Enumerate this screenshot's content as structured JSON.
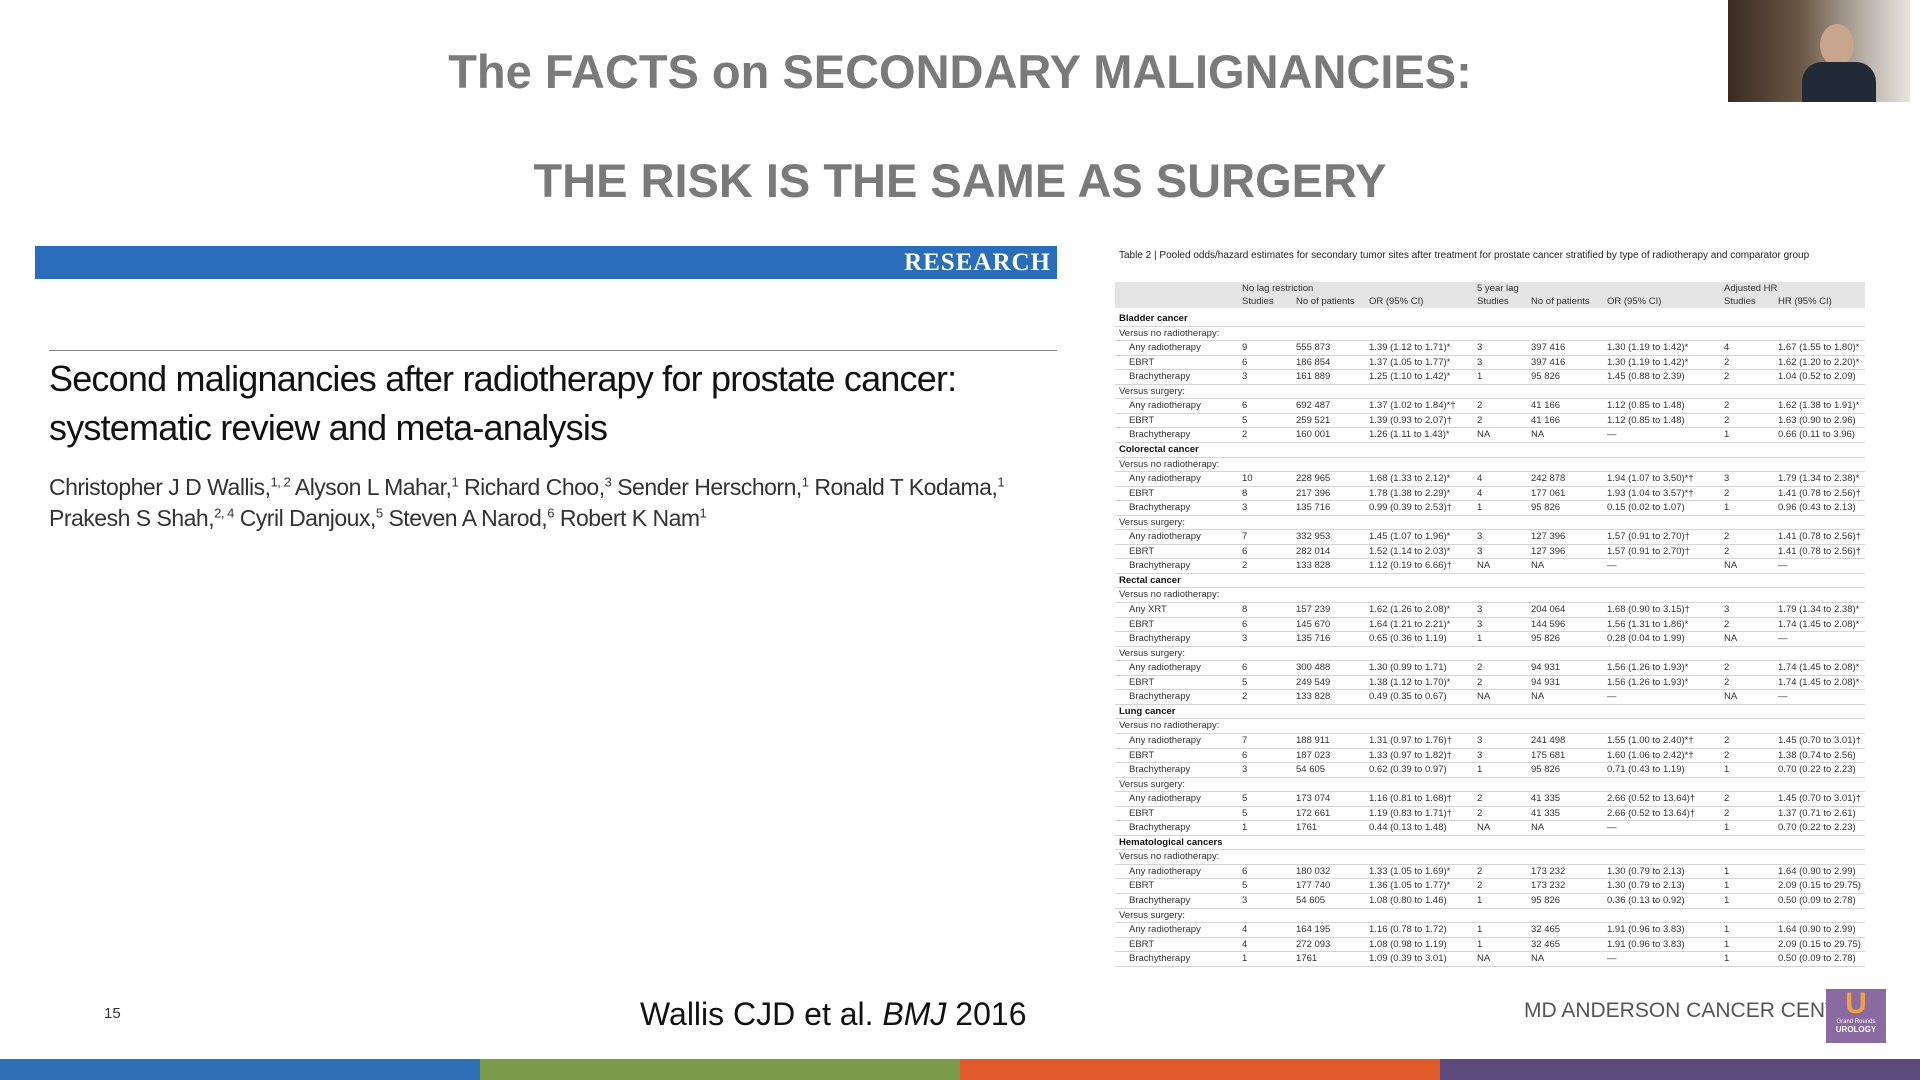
{
  "slide": {
    "title_line1": "The FACTS on SECONDARY MALIGNANCIES:",
    "title_line2": "THE RISK IS THE SAME AS SURGERY",
    "page_number": "15",
    "citation": {
      "authors": "Wallis CJD et al.",
      "journal": "BMJ",
      "year": "2016"
    },
    "footer": "MD ANDERSON CANCER CENTER",
    "logo": {
      "letter": "U",
      "top": "Grand Rounds",
      "bottom": "UROLOGY"
    }
  },
  "article": {
    "banner": "RESEARCH",
    "title_lines": [
      "Second malignancies after radiotherapy for prostate cancer:",
      "systematic review and meta-analysis"
    ],
    "author_lines": [
      [
        {
          "name": "Christopher J D Wallis,",
          "aff": "1, 2"
        },
        {
          "name": "Alyson L Mahar,",
          "aff": "1"
        },
        {
          "name": "Richard Choo,",
          "aff": "3"
        },
        {
          "name": "Sender Herschorn,",
          "aff": "1"
        },
        {
          "name": "Ronald T Kodama,",
          "aff": "1"
        }
      ],
      [
        {
          "name": "Prakesh S Shah,",
          "aff": "2, 4"
        },
        {
          "name": "Cyril Danjoux,",
          "aff": "5"
        },
        {
          "name": "Steven A Narod,",
          "aff": "6"
        },
        {
          "name": "Robert K Nam",
          "aff": "1"
        }
      ]
    ]
  },
  "table": {
    "caption": "Table 2 | Pooled odds/hazard estimates for secondary tumor sites after treatment for prostate cancer stratified by type of radiotherapy and comparator group",
    "header_groups": [
      "No lag restriction",
      "5 year lag",
      "Adjusted HR"
    ],
    "columns": [
      "Studies",
      "No of patients",
      "OR (95% CI)",
      "Studies",
      "No of patients",
      "OR (95% CI)",
      "Studies",
      "HR (95% CI)"
    ],
    "sections": [
      {
        "name": "Bladder cancer",
        "groups": [
          {
            "name": "Versus no radiotherapy:",
            "rows": [
              [
                "Any radiotherapy",
                "9",
                "555 873",
                "1.39 (1.12 to 1.71)*",
                "3",
                "397 416",
                "1.30 (1.19 to 1.42)*",
                "4",
                "1.67 (1.55 to 1.80)*"
              ],
              [
                "EBRT",
                "6",
                "186 854",
                "1.37 (1.05 to 1.77)*",
                "3",
                "397 416",
                "1.30 (1.19 to 1.42)*",
                "2",
                "1.62 (1.20 to 2.20)*"
              ],
              [
                "Brachytherapy",
                "3",
                "161 889",
                "1.25 (1.10 to 1.42)*",
                "1",
                "95 826",
                "1.45 (0.88 to 2.39)",
                "2",
                "1.04 (0.52 to 2.09)"
              ]
            ]
          },
          {
            "name": "Versus surgery:",
            "rows": [
              [
                "Any radiotherapy",
                "6",
                "692 487",
                "1.37 (1.02 to 1.84)*†",
                "2",
                "41 166",
                "1.12 (0.85 to 1.48)",
                "2",
                "1.62 (1.38 to 1.91)*"
              ],
              [
                "EBRT",
                "5",
                "259 521",
                "1.39 (0.93 to 2.07)†",
                "2",
                "41 166",
                "1.12 (0.85 to 1.48)",
                "2",
                "1.63 (0.90 to 2.96)"
              ],
              [
                "Brachytherapy",
                "2",
                "160 001",
                "1.26 (1.11 to 1.43)*",
                "NA",
                "NA",
                "—",
                "1",
                "0.66 (0.11 to 3.96)"
              ]
            ]
          }
        ]
      },
      {
        "name": "Colorectal cancer",
        "groups": [
          {
            "name": "Versus no radiotherapy:",
            "rows": [
              [
                "Any radiotherapy",
                "10",
                "228 965",
                "1.68 (1.33 to 2.12)*",
                "4",
                "242 878",
                "1.94 (1.07 to 3.50)*†",
                "3",
                "1.79 (1.34 to 2.38)*"
              ],
              [
                "EBRT",
                "8",
                "217 396",
                "1.78 (1.38 to 2.29)*",
                "4",
                "177 061",
                "1.93 (1.04 to 3.57)*†",
                "2",
                "1.41 (0.78 to 2.56)†"
              ],
              [
                "Brachytherapy",
                "3",
                "135 716",
                "0.99 (0.39 to 2.53)†",
                "1",
                "95 826",
                "0.15 (0.02 to 1.07)",
                "1",
                "0.96 (0.43 to 2.13)"
              ]
            ]
          },
          {
            "name": "Versus surgery:",
            "rows": [
              [
                "Any radiotherapy",
                "7",
                "332 953",
                "1.45 (1.07 to 1.96)*",
                "3",
                "127 396",
                "1.57 (0.91 to 2.70)†",
                "2",
                "1.41 (0.78 to 2.56)†"
              ],
              [
                "EBRT",
                "6",
                "282 014",
                "1.52 (1.14 to 2.03)*",
                "3",
                "127 396",
                "1.57 (0.91 to 2.70)†",
                "2",
                "1.41 (0.78 to 2.56)†"
              ],
              [
                "Brachytherapy",
                "2",
                "133 828",
                "1.12 (0.19 to 6.66)†",
                "NA",
                "NA",
                "—",
                "NA",
                "—"
              ]
            ]
          }
        ]
      },
      {
        "name": "Rectal cancer",
        "groups": [
          {
            "name": "Versus no radiotherapy:",
            "rows": [
              [
                "Any XRT",
                "8",
                "157 239",
                "1.62 (1.26 to 2.08)*",
                "3",
                "204 064",
                "1.68 (0.90 to 3.15)†",
                "3",
                "1.79 (1.34 to 2.38)*"
              ],
              [
                "EBRT",
                "6",
                "145 670",
                "1.64 (1.21 to 2.21)*",
                "3",
                "144 596",
                "1.56 (1.31 to 1.86)*",
                "2",
                "1.74 (1.45 to 2.08)*"
              ],
              [
                "Brachytherapy",
                "3",
                "135 716",
                "0.65 (0.36 to 1.19)",
                "1",
                "95 826",
                "0.28 (0.04 to 1.99)",
                "NA",
                "—"
              ]
            ]
          },
          {
            "name": "Versus surgery:",
            "rows": [
              [
                "Any radiotherapy",
                "6",
                "300 488",
                "1.30 (0.99 to 1.71)",
                "2",
                "94 931",
                "1.56 (1.26 to 1.93)*",
                "2",
                "1.74 (1.45 to 2.08)*"
              ],
              [
                "EBRT",
                "5",
                "249 549",
                "1.38 (1.12 to 1.70)*",
                "2",
                "94 931",
                "1.56 (1.26 to 1.93)*",
                "2",
                "1.74 (1.45 to 2.08)*"
              ],
              [
                "Brachytherapy",
                "2",
                "133 828",
                "0.49 (0.35 to 0.67)",
                "NA",
                "NA",
                "—",
                "NA",
                "—"
              ]
            ]
          }
        ]
      },
      {
        "name": "Lung cancer",
        "groups": [
          {
            "name": "Versus no radiotherapy:",
            "rows": [
              [
                "Any radiotherapy",
                "7",
                "188 911",
                "1.31 (0.97 to 1.76)†",
                "3",
                "241 498",
                "1.55 (1.00 to 2.40)*†",
                "2",
                "1.45 (0.70 to 3.01)†"
              ],
              [
                "EBRT",
                "6",
                "187 023",
                "1.33 (0.97 to 1.82)†",
                "3",
                "175 681",
                "1.60 (1.06 to 2.42)*†",
                "2",
                "1.38 (0.74 to 2.56)"
              ],
              [
                "Brachytherapy",
                "3",
                "54 605",
                "0.62 (0.39 to 0.97)",
                "1",
                "95 826",
                "0.71 (0.43 to 1.19)",
                "1",
                "0.70 (0.22 to 2.23)"
              ]
            ]
          },
          {
            "name": "Versus surgery:",
            "rows": [
              [
                "Any radiotherapy",
                "5",
                "173 074",
                "1.16 (0.81 to 1.68)†",
                "2",
                "41 335",
                "2.66 (0.52 to 13.64)†",
                "2",
                "1.45 (0.70 to 3.01)†"
              ],
              [
                "EBRT",
                "5",
                "172 661",
                "1.19 (0.83 to 1.71)†",
                "2",
                "41 335",
                "2.66 (0.52 to 13.64)†",
                "2",
                "1.37 (0.71 to 2.61)"
              ],
              [
                "Brachytherapy",
                "1",
                "1761",
                "0.44 (0.13 to 1.48)",
                "NA",
                "NA",
                "—",
                "1",
                "0.70 (0.22 to 2.23)"
              ]
            ]
          }
        ]
      },
      {
        "name": "Hematological cancers",
        "groups": [
          {
            "name": "Versus no radiotherapy:",
            "rows": [
              [
                "Any radiotherapy",
                "6",
                "180 032",
                "1.33 (1.05 to 1.69)*",
                "2",
                "173 232",
                "1.30 (0.79 to 2.13)",
                "1",
                "1.64 (0.90 to 2.99)"
              ],
              [
                "EBRT",
                "5",
                "177 740",
                "1.36 (1.05 to 1.77)*",
                "2",
                "173 232",
                "1.30 (0.79 to 2.13)",
                "1",
                "2.09 (0.15 to 29.75)"
              ],
              [
                "Brachytherapy",
                "3",
                "54 605",
                "1.08 (0.80 to 1.46)",
                "1",
                "95 826",
                "0.36 (0.13 to 0.92)",
                "1",
                "0.50 (0.09 to 2.78)"
              ]
            ]
          },
          {
            "name": "Versus surgery:",
            "rows": [
              [
                "Any radiotherapy",
                "4",
                "164 195",
                "1.16 (0.78 to 1.72)",
                "1",
                "32 465",
                "1.91 (0.96 to 3.83)",
                "1",
                "1.64 (0.90 to 2.99)"
              ],
              [
                "EBRT",
                "4",
                "272 093",
                "1.08 (0.98 to 1.19)",
                "1",
                "32 465",
                "1.91 (0.96 to 3.83)",
                "1",
                "2.09 (0.15 to 29.75)"
              ],
              [
                "Brachytherapy",
                "1",
                "1761",
                "1.09 (0.39 to 3.01)",
                "NA",
                "NA",
                "—",
                "1",
                "0.50 (0.09 to 2.78)"
              ]
            ]
          }
        ]
      }
    ]
  }
}
